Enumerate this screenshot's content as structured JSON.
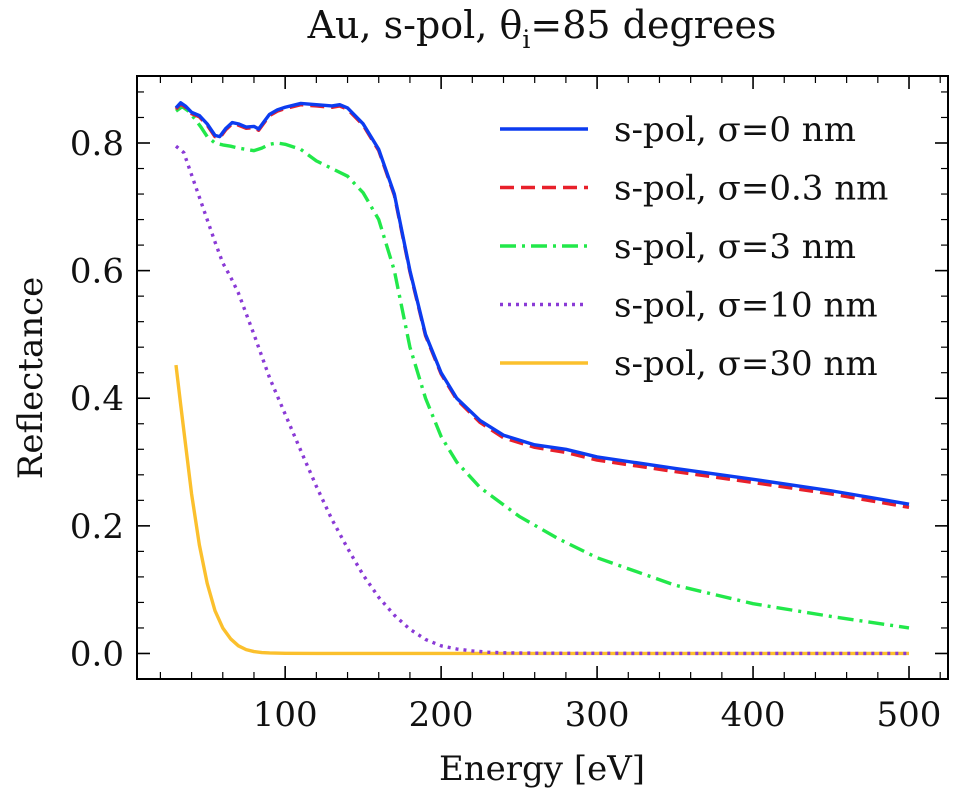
{
  "chart_data": {
    "type": "line",
    "title": "Au, s-pol, θ",
    "title_sub": "i",
    "title_tail": "=85 degrees",
    "xlabel": "Energy [eV]",
    "ylabel": "Reflectance",
    "xlim": [
      5,
      525
    ],
    "ylim": [
      -0.04,
      0.905
    ],
    "xticks": [
      100,
      200,
      300,
      400,
      500
    ],
    "xtick_labels": [
      "100",
      "200",
      "300",
      "400",
      "500"
    ],
    "yticks": [
      0.0,
      0.2,
      0.4,
      0.6,
      0.8
    ],
    "ytick_labels": [
      "0.0",
      "0.2",
      "0.4",
      "0.6",
      "0.8"
    ],
    "grid": false,
    "legend_position": "upper right",
    "series": [
      {
        "name": "s-pol, σ=0 nm",
        "color": "#0c3cf0",
        "dash": "solid",
        "x": [
          30,
          33,
          36,
          40,
          45,
          50,
          55,
          58,
          62,
          66,
          70,
          75,
          80,
          83,
          86,
          90,
          95,
          100,
          110,
          120,
          130,
          135,
          140,
          150,
          160,
          170,
          180,
          190,
          200,
          210,
          225,
          240,
          260,
          280,
          300,
          350,
          400,
          450,
          500
        ],
        "y": [
          0.855,
          0.863,
          0.858,
          0.848,
          0.843,
          0.83,
          0.812,
          0.81,
          0.823,
          0.832,
          0.83,
          0.825,
          0.826,
          0.822,
          0.832,
          0.845,
          0.852,
          0.856,
          0.862,
          0.86,
          0.858,
          0.86,
          0.855,
          0.83,
          0.79,
          0.72,
          0.6,
          0.5,
          0.44,
          0.4,
          0.365,
          0.342,
          0.327,
          0.32,
          0.308,
          0.29,
          0.273,
          0.255,
          0.234
        ]
      },
      {
        "name": "s-pol, σ=0.3 nm",
        "color": "#e8202a",
        "dash": "dashed",
        "x": [
          30,
          33,
          36,
          40,
          45,
          50,
          55,
          58,
          62,
          66,
          70,
          75,
          80,
          83,
          86,
          90,
          95,
          100,
          110,
          120,
          130,
          135,
          140,
          150,
          160,
          170,
          180,
          190,
          200,
          210,
          225,
          240,
          260,
          280,
          300,
          350,
          400,
          450,
          500
        ],
        "y": [
          0.853,
          0.861,
          0.856,
          0.846,
          0.841,
          0.828,
          0.81,
          0.808,
          0.821,
          0.83,
          0.828,
          0.823,
          0.824,
          0.82,
          0.83,
          0.843,
          0.85,
          0.854,
          0.86,
          0.858,
          0.856,
          0.858,
          0.853,
          0.828,
          0.788,
          0.718,
          0.598,
          0.498,
          0.438,
          0.398,
          0.362,
          0.338,
          0.323,
          0.315,
          0.303,
          0.285,
          0.268,
          0.25,
          0.229
        ]
      },
      {
        "name": "s-pol, σ=3 nm",
        "color": "#22e84a",
        "dash": "dashdot",
        "x": [
          30,
          34,
          38,
          42,
          46,
          50,
          55,
          60,
          65,
          70,
          75,
          80,
          85,
          90,
          95,
          100,
          110,
          120,
          130,
          140,
          150,
          160,
          170,
          180,
          190,
          200,
          210,
          225,
          250,
          275,
          300,
          350,
          400,
          450,
          500
        ],
        "y": [
          0.85,
          0.857,
          0.85,
          0.838,
          0.825,
          0.81,
          0.8,
          0.797,
          0.795,
          0.792,
          0.79,
          0.788,
          0.792,
          0.798,
          0.8,
          0.798,
          0.79,
          0.772,
          0.76,
          0.748,
          0.722,
          0.68,
          0.6,
          0.48,
          0.4,
          0.34,
          0.3,
          0.26,
          0.215,
          0.18,
          0.15,
          0.107,
          0.078,
          0.058,
          0.04
        ]
      },
      {
        "name": "s-pol, σ=10 nm",
        "color": "#8a3ad6",
        "dash": "dotted",
        "x": [
          30,
          35,
          40,
          45,
          50,
          55,
          60,
          65,
          70,
          80,
          90,
          100,
          110,
          120,
          130,
          140,
          150,
          160,
          170,
          180,
          190,
          200,
          210,
          220,
          230,
          240,
          260,
          280,
          300,
          350,
          400,
          450,
          500
        ],
        "y": [
          0.795,
          0.785,
          0.75,
          0.715,
          0.68,
          0.645,
          0.612,
          0.59,
          0.565,
          0.5,
          0.432,
          0.375,
          0.318,
          0.262,
          0.21,
          0.165,
          0.123,
          0.088,
          0.06,
          0.038,
          0.022,
          0.012,
          0.007,
          0.004,
          0.002,
          0.001,
          0.0005,
          0.0003,
          0.0002,
          0.0001,
          0.0001,
          0.0001,
          0.0001
        ]
      },
      {
        "name": "s-pol, σ=30 nm",
        "color": "#fbc02d",
        "dash": "solid",
        "x": [
          30,
          33,
          36,
          40,
          45,
          50,
          55,
          60,
          65,
          70,
          75,
          80,
          85,
          90,
          100,
          120,
          150,
          200,
          300,
          400,
          500
        ],
        "y": [
          0.452,
          0.39,
          0.33,
          0.25,
          0.17,
          0.11,
          0.067,
          0.04,
          0.023,
          0.012,
          0.006,
          0.003,
          0.0015,
          0.0008,
          0.0003,
          0.0001,
          0.0,
          0.0,
          0.0,
          0.0,
          0.0
        ]
      }
    ]
  }
}
